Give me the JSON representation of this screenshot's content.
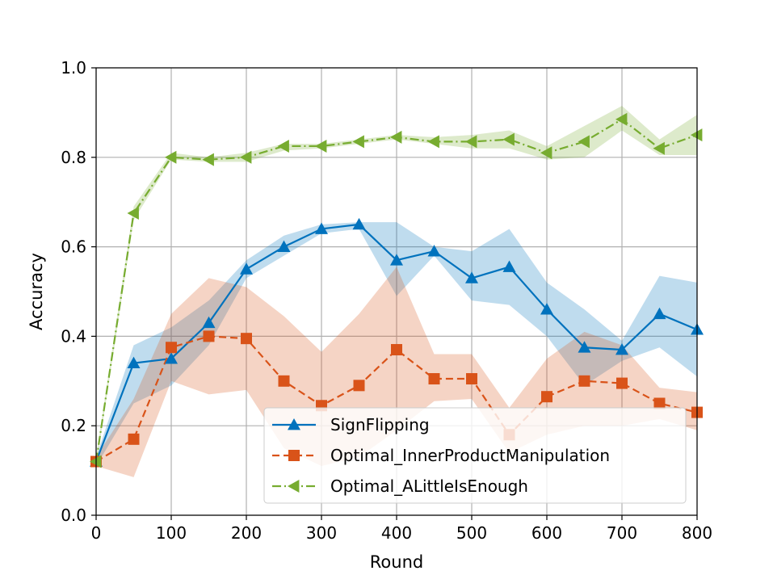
{
  "chart_data": {
    "type": "line",
    "xlabel": "Round",
    "ylabel": "Accuracy",
    "xlim": [
      0,
      800
    ],
    "ylim": [
      0.0,
      1.0
    ],
    "xticks": [
      "0",
      "100",
      "200",
      "300",
      "400",
      "500",
      "600",
      "700",
      "800"
    ],
    "yticks": [
      "0.0",
      "0.2",
      "0.4",
      "0.6",
      "0.8",
      "1.0"
    ],
    "grid": true,
    "legend_position": "lower-right",
    "x": [
      0,
      50,
      100,
      150,
      200,
      250,
      300,
      350,
      400,
      450,
      500,
      550,
      600,
      650,
      700,
      750,
      800
    ],
    "series": [
      {
        "name": "SignFlipping",
        "color": "#0072BD",
        "marker": "triangle-up",
        "linestyle": "solid",
        "values": [
          0.12,
          0.34,
          0.35,
          0.43,
          0.55,
          0.6,
          0.64,
          0.65,
          0.57,
          0.59,
          0.53,
          0.555,
          0.46,
          0.375,
          0.37,
          0.45,
          0.415
        ],
        "lower": [
          0.11,
          0.25,
          0.29,
          0.38,
          0.53,
          0.58,
          0.63,
          0.64,
          0.49,
          0.58,
          0.48,
          0.47,
          0.4,
          0.29,
          0.345,
          0.375,
          0.31
        ],
        "upper": [
          0.13,
          0.38,
          0.42,
          0.48,
          0.57,
          0.625,
          0.65,
          0.655,
          0.655,
          0.6,
          0.59,
          0.64,
          0.52,
          0.46,
          0.39,
          0.535,
          0.52
        ]
      },
      {
        "name": "Optimal_InnerProductManipulation",
        "color": "#D95319",
        "marker": "square",
        "linestyle": "dashed",
        "values": [
          0.12,
          0.17,
          0.375,
          0.4,
          0.395,
          0.3,
          0.245,
          0.29,
          0.37,
          0.305,
          0.305,
          0.18,
          0.265,
          0.3,
          0.295,
          0.25,
          0.23
        ],
        "lower": [
          0.11,
          0.085,
          0.3,
          0.27,
          0.28,
          0.15,
          0.11,
          0.13,
          0.19,
          0.255,
          0.26,
          0.14,
          0.18,
          0.2,
          0.2,
          0.215,
          0.19
        ],
        "upper": [
          0.13,
          0.26,
          0.45,
          0.53,
          0.51,
          0.445,
          0.365,
          0.45,
          0.555,
          0.36,
          0.36,
          0.24,
          0.35,
          0.41,
          0.38,
          0.285,
          0.275
        ]
      },
      {
        "name": "Optimal_ALittleIsEnough",
        "color": "#77AC30",
        "marker": "triangle-left",
        "linestyle": "dashdot",
        "values": [
          0.12,
          0.675,
          0.8,
          0.795,
          0.8,
          0.825,
          0.825,
          0.835,
          0.845,
          0.835,
          0.835,
          0.84,
          0.81,
          0.835,
          0.885,
          0.82,
          0.85
        ],
        "lower": [
          0.11,
          0.66,
          0.795,
          0.79,
          0.79,
          0.815,
          0.82,
          0.83,
          0.84,
          0.83,
          0.82,
          0.82,
          0.795,
          0.8,
          0.86,
          0.805,
          0.805
        ],
        "upper": [
          0.13,
          0.69,
          0.81,
          0.8,
          0.81,
          0.83,
          0.83,
          0.84,
          0.85,
          0.845,
          0.85,
          0.86,
          0.825,
          0.87,
          0.915,
          0.84,
          0.895
        ]
      }
    ]
  }
}
